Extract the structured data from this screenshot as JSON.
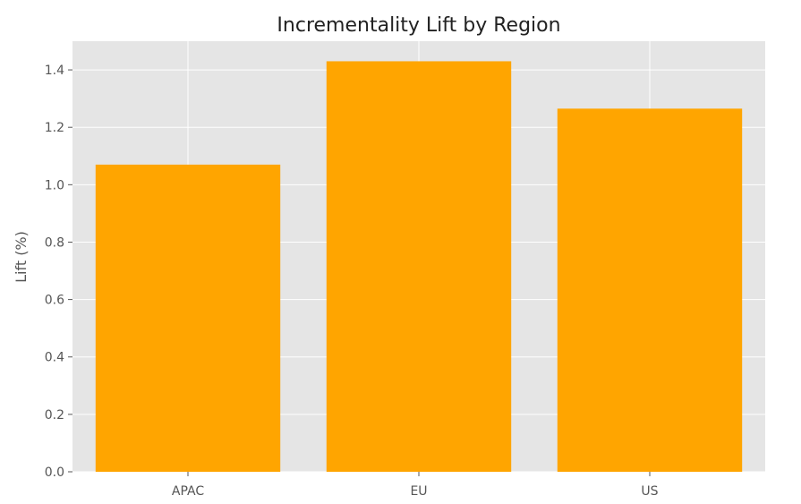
{
  "chart_data": {
    "type": "bar",
    "title": "Incrementality Lift by Region",
    "xlabel": "",
    "ylabel": "Lift (%)",
    "categories": [
      "APAC",
      "EU",
      "US"
    ],
    "values": [
      1.07,
      1.43,
      1.265
    ],
    "ylim": [
      0,
      1.5
    ],
    "yticks": [
      0.0,
      0.2,
      0.4,
      0.6,
      0.8,
      1.0,
      1.2,
      1.4
    ],
    "ytick_labels": [
      "0.0",
      "0.2",
      "0.4",
      "0.6",
      "0.8",
      "1.0",
      "1.2",
      "1.4"
    ],
    "grid": true,
    "legend": "none",
    "colors": {
      "bar": "#FFA500",
      "plot_background": "#E5E5E5",
      "grid": "#FFFFFF"
    }
  }
}
